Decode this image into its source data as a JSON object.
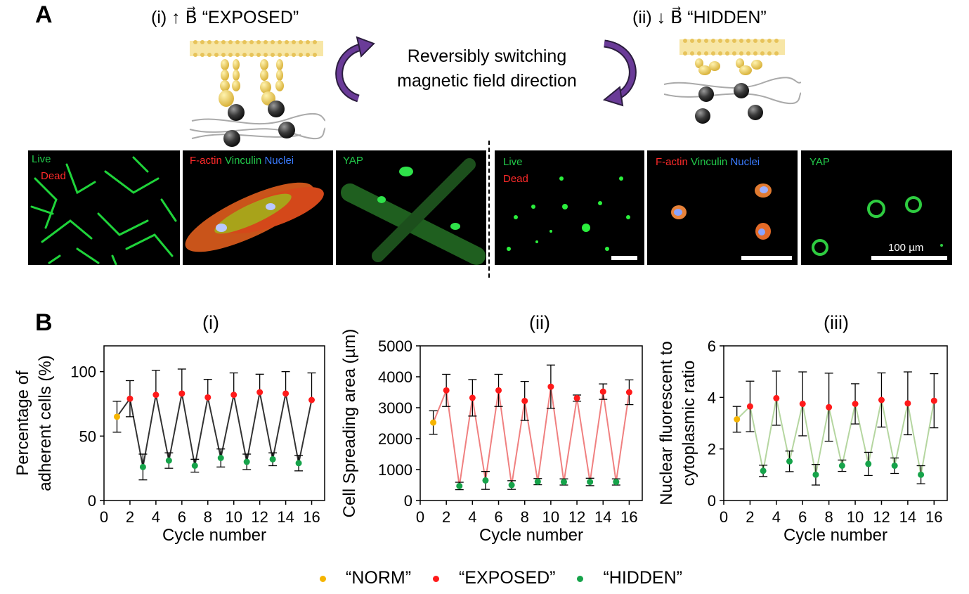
{
  "panel_a": {
    "letter": "A",
    "exposed_label": "(i) ↑ B⃗ “EXPOSED”",
    "hidden_label": "(ii) ↓ B⃗ “HIDDEN”",
    "switch_text_1": "Reversibly switching",
    "switch_text_2": "magnetic field direction",
    "images": [
      {
        "labels": [
          "Live",
          "Dead"
        ],
        "label_colors": [
          "#22c94a",
          "#ff2a2a"
        ]
      },
      {
        "labels": [
          "F-actin",
          "Vinculin",
          "Nuclei"
        ],
        "label_colors": [
          "#ff2a2a",
          "#22c94a",
          "#3a7bff"
        ]
      },
      {
        "labels": [
          "YAP"
        ],
        "label_colors": [
          "#22c94a"
        ]
      },
      {
        "labels": [
          "Live",
          "Dead"
        ],
        "label_colors": [
          "#22c94a",
          "#ff2a2a"
        ]
      },
      {
        "labels": [
          "F-actin",
          "Vinculin",
          "Nuclei"
        ],
        "label_colors": [
          "#ff2a2a",
          "#22c94a",
          "#3a7bff"
        ]
      },
      {
        "labels": [
          "YAP"
        ],
        "label_colors": [
          "#22c94a"
        ]
      }
    ],
    "scale_label": "100 µm"
  },
  "panel_b": {
    "letter": "B",
    "legend": [
      {
        "label": "“NORM”",
        "color": "#f5b400"
      },
      {
        "label": "“EXPOSED”",
        "color": "#ff1a1a"
      },
      {
        "label": "“HIDDEN”",
        "color": "#16a34a"
      }
    ]
  },
  "chart_data": [
    {
      "type": "line",
      "title": "(i)",
      "xlabel": "Cycle number",
      "ylabel": "Percentage of adherent cells (%)",
      "xlim": [
        0,
        17
      ],
      "ylim": [
        0,
        120
      ],
      "xticks": [
        0,
        2,
        4,
        6,
        8,
        10,
        12,
        14,
        16
      ],
      "yticks": [
        0,
        50,
        100
      ],
      "line_color": "#333333",
      "x": [
        1,
        2,
        3,
        4,
        5,
        6,
        7,
        8,
        9,
        10,
        11,
        12,
        13,
        14,
        15,
        16
      ],
      "y": [
        65,
        79,
        26,
        82,
        31,
        83,
        27,
        80,
        33,
        82,
        30,
        84,
        32,
        83,
        29,
        78
      ],
      "err": [
        12,
        14,
        10,
        19,
        6,
        19,
        5,
        14,
        7,
        17,
        6,
        14,
        5,
        17,
        6,
        21
      ],
      "cap": [
        "both",
        "both",
        "both",
        "up",
        "both",
        "up",
        "both",
        "up",
        "both",
        "up",
        "both",
        "up",
        "both",
        "up",
        "both",
        "up"
      ]
    },
    {
      "type": "line",
      "title": "(ii)",
      "xlabel": "Cycle number",
      "ylabel": "Cell Spreading area (µm)",
      "xlim": [
        0,
        17
      ],
      "ylim": [
        0,
        5000
      ],
      "xticks": [
        0,
        2,
        4,
        6,
        8,
        10,
        12,
        14,
        16
      ],
      "yticks": [
        0,
        1000,
        2000,
        3000,
        4000,
        5000
      ],
      "line_color": "#f08080",
      "x": [
        1,
        2,
        3,
        4,
        5,
        6,
        7,
        8,
        9,
        10,
        11,
        12,
        13,
        14,
        15,
        16
      ],
      "y": [
        2520,
        3560,
        470,
        3320,
        650,
        3560,
        500,
        3220,
        610,
        3680,
        600,
        3310,
        600,
        3520,
        600,
        3500
      ],
      "err": [
        380,
        520,
        120,
        590,
        290,
        520,
        140,
        630,
        100,
        700,
        100,
        100,
        120,
        250,
        100,
        400
      ],
      "cap": [
        "both",
        "both",
        "both",
        "both",
        "both",
        "both",
        "both",
        "both",
        "both",
        "both",
        "both",
        "both",
        "both",
        "both",
        "both",
        "both"
      ]
    },
    {
      "type": "line",
      "title": "(iii)",
      "xlabel": "Cycle number",
      "ylabel": "Nuclear fluorescent to cytoplasmic ratio",
      "xlim": [
        0,
        17
      ],
      "ylim": [
        0,
        6
      ],
      "xticks": [
        0,
        2,
        4,
        6,
        8,
        10,
        12,
        14,
        16
      ],
      "yticks": [
        0,
        2,
        4,
        6
      ],
      "line_color": "#b5d6a0",
      "x": [
        1,
        2,
        3,
        4,
        5,
        6,
        7,
        8,
        9,
        10,
        11,
        12,
        13,
        14,
        15,
        16
      ],
      "y": [
        3.15,
        3.65,
        1.15,
        3.97,
        1.52,
        3.75,
        1.0,
        3.62,
        1.35,
        3.75,
        1.42,
        3.9,
        1.35,
        3.77,
        1.0,
        3.87
      ],
      "err": [
        0.5,
        0.98,
        0.22,
        1.05,
        0.4,
        1.24,
        0.4,
        1.32,
        0.22,
        0.78,
        0.45,
        1.05,
        0.3,
        1.22,
        0.35,
        1.05
      ],
      "cap": [
        "both",
        "both",
        "both",
        "both",
        "both",
        "both",
        "both",
        "both",
        "both",
        "both",
        "both",
        "both",
        "both",
        "both",
        "both",
        "both"
      ]
    }
  ]
}
